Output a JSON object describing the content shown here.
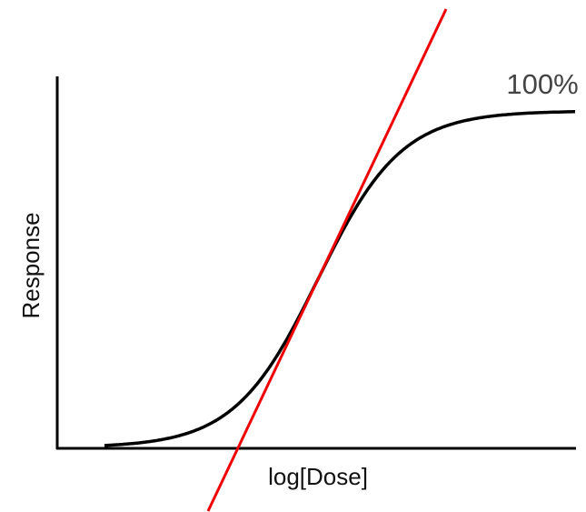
{
  "labels": {
    "top_right": "100%",
    "y_axis": "Response",
    "x_axis": "log[Dose]"
  }
}
